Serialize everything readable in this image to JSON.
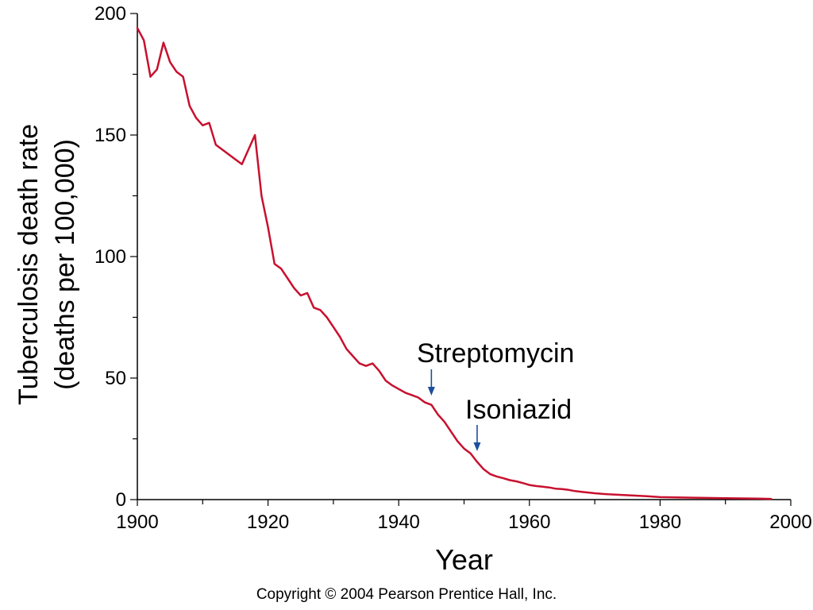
{
  "chart_data": {
    "type": "line",
    "title": "",
    "xlabel": "Year",
    "ylabel": [
      "Tuberculosis death rate",
      "(deaths per 100,000)"
    ],
    "xlim": [
      1900,
      2000
    ],
    "ylim": [
      0,
      200
    ],
    "x_ticks": [
      1900,
      1920,
      1940,
      1960,
      1980,
      2000
    ],
    "y_ticks": [
      0,
      50,
      100,
      150,
      200
    ],
    "grid": false,
    "line_color": "#c8102e",
    "arrow_color": "#1f4e9c",
    "series": [
      {
        "x": [
          1900,
          1901,
          1902,
          1903,
          1904,
          1905,
          1906,
          1907,
          1908,
          1909,
          1910,
          1911,
          1912,
          1913,
          1914,
          1915,
          1916,
          1917,
          1918,
          1919,
          1920,
          1921,
          1922,
          1923,
          1924,
          1925,
          1926,
          1927,
          1928,
          1929,
          1930,
          1931,
          1932,
          1933,
          1934,
          1935,
          1936,
          1937,
          1938,
          1939,
          1940,
          1941,
          1942,
          1943,
          1944,
          1945,
          1946,
          1947,
          1948,
          1949,
          1950,
          1951,
          1952,
          1953,
          1954,
          1955,
          1956,
          1957,
          1958,
          1959,
          1960,
          1961,
          1962,
          1963,
          1964,
          1965,
          1966,
          1967,
          1968,
          1969,
          1970,
          1972,
          1975,
          1978,
          1980,
          1985,
          1990,
          1995,
          1997
        ],
        "y": [
          194,
          189,
          174,
          177,
          188,
          180,
          176,
          174,
          162,
          157,
          154,
          155,
          146,
          144,
          142,
          140,
          138,
          144,
          150,
          125,
          112,
          97,
          95,
          91,
          87,
          84,
          85,
          79,
          78,
          75,
          71,
          67,
          62,
          59,
          56,
          55,
          56,
          53,
          49,
          47,
          45.5,
          44,
          43,
          42,
          40,
          39,
          35,
          32,
          28,
          24,
          21,
          19,
          15.5,
          12.5,
          10.5,
          9.5,
          8.8,
          8,
          7.5,
          6.8,
          6,
          5.6,
          5.3,
          5,
          4.5,
          4.3,
          4,
          3.5,
          3.2,
          2.9,
          2.6,
          2.2,
          1.8,
          1.4,
          1,
          0.8,
          0.6,
          0.4,
          0.3
        ]
      }
    ],
    "annotations": [
      {
        "label": "Streptomycin",
        "x": 1945,
        "y": 40
      },
      {
        "label": "Isoniazid",
        "x": 1952,
        "y": 18
      }
    ]
  },
  "copyright": "Copyright © 2004 Pearson Prentice Hall, Inc."
}
